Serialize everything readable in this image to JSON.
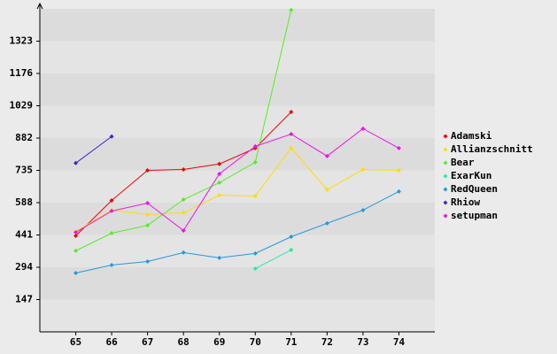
{
  "chart_data": {
    "type": "line",
    "x": [
      65,
      66,
      67,
      68,
      69,
      70,
      71,
      72,
      73,
      74
    ],
    "xlim": [
      64,
      75
    ],
    "xticks": [
      65,
      66,
      67,
      68,
      69,
      70,
      71,
      72,
      73,
      74
    ],
    "ylim": [
      0,
      1470
    ],
    "yticks": [
      147,
      294,
      441,
      588,
      735,
      882,
      1029,
      1176,
      1323
    ],
    "series": [
      {
        "name": "Adamski",
        "color": "#ee0000",
        "values": [
          437,
          598,
          735,
          739,
          764,
          836,
          1001,
          null,
          null,
          null
        ]
      },
      {
        "name": "Allianzschnitt",
        "color": "#ffdd00",
        "values": [
          457,
          554,
          534,
          542,
          622,
          618,
          836,
          647,
          739,
          735
        ]
      },
      {
        "name": "Bear",
        "color": "#55ee22",
        "values": [
          369,
          449,
          485,
          602,
          679,
          772,
          1465,
          null,
          null,
          null
        ]
      },
      {
        "name": "ExarKun",
        "color": "#22ee99",
        "values": [
          null,
          null,
          null,
          null,
          null,
          288,
          373,
          null,
          null,
          null
        ]
      },
      {
        "name": "RedQueen",
        "color": "#2299dd",
        "values": [
          268,
          304,
          320,
          361,
          337,
          357,
          433,
          494,
          554,
          639
        ]
      },
      {
        "name": "Rhiow",
        "color": "#4422cc",
        "values": [
          768,
          889,
          null,
          null,
          null,
          null,
          null,
          null,
          null,
          null
        ]
      },
      {
        "name": "setupman",
        "color": "#ee11ee",
        "values": [
          453,
          550,
          586,
          461,
          719,
          844,
          900,
          800,
          925,
          836
        ]
      }
    ]
  }
}
